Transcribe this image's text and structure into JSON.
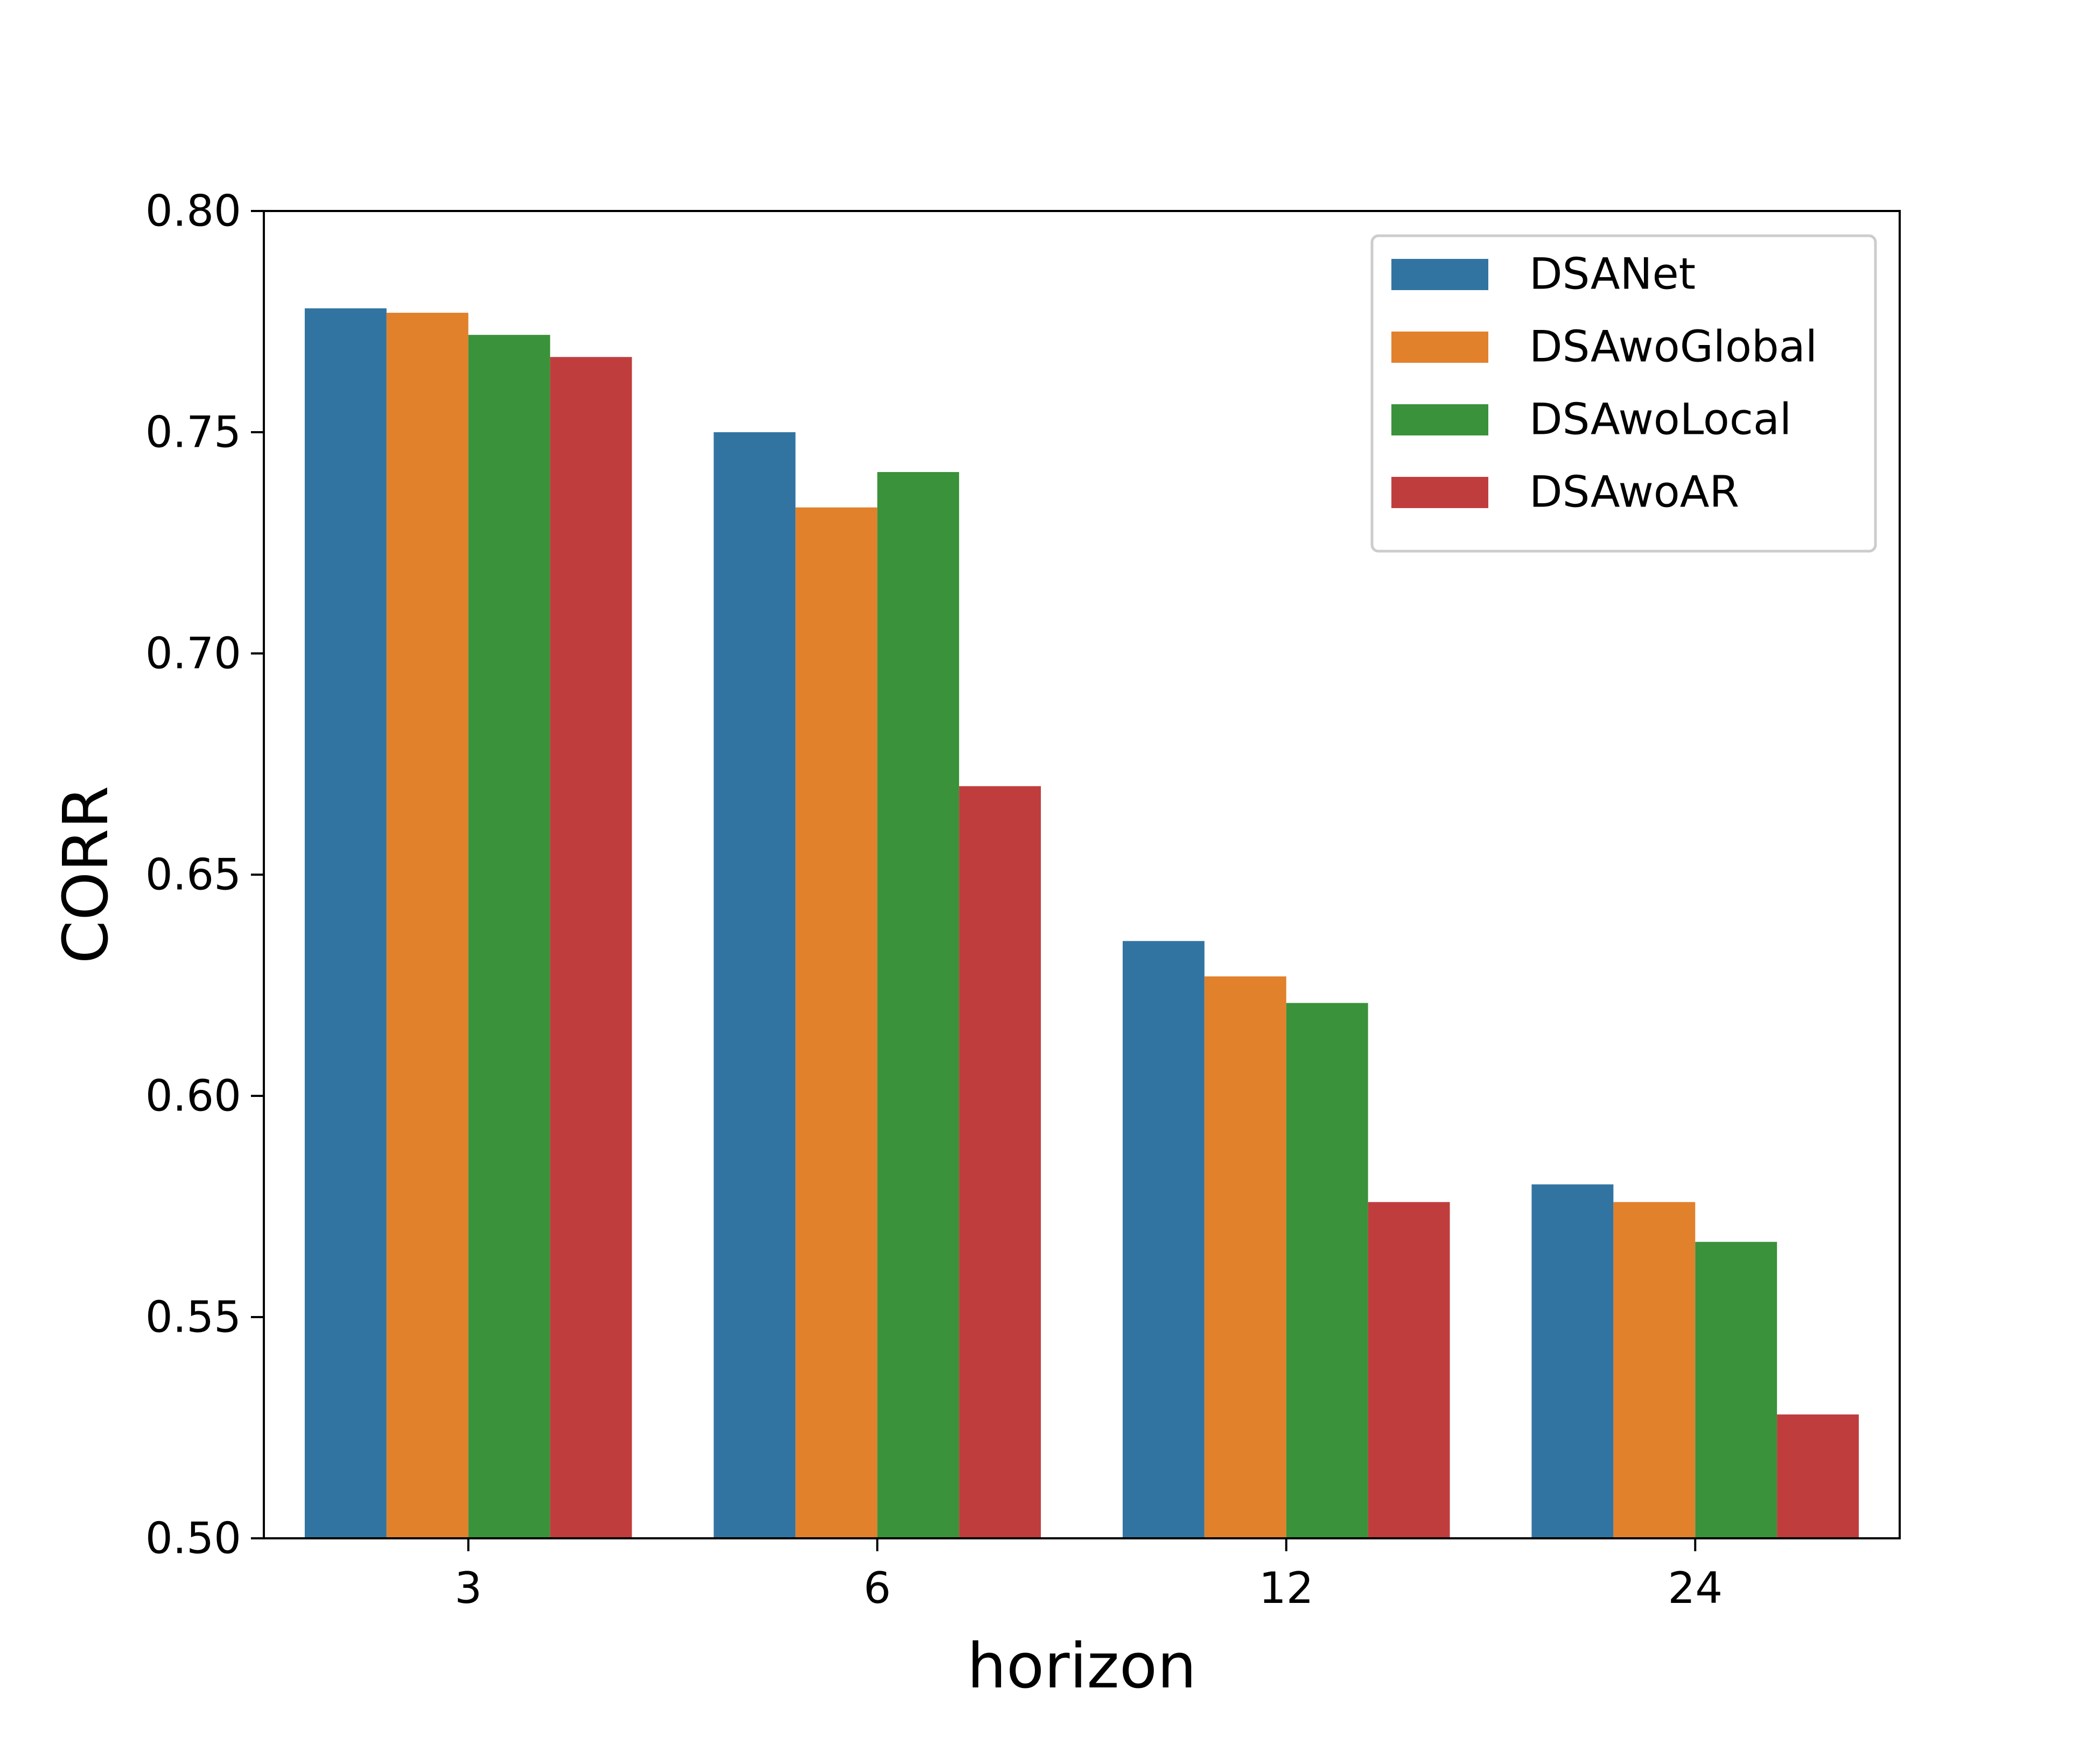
{
  "chart_data": {
    "type": "bar",
    "title": "",
    "xlabel": "horizon",
    "ylabel": "CORR",
    "categories": [
      "3",
      "6",
      "12",
      "24"
    ],
    "ylim": [
      0.5,
      0.8
    ],
    "yticks": [
      "0.50",
      "0.55",
      "0.60",
      "0.65",
      "0.70",
      "0.75",
      "0.80"
    ],
    "legend_position": "top-right",
    "grid": false,
    "series": [
      {
        "name": "DSANet",
        "color": "#3274a1",
        "values": [
          0.778,
          0.75,
          0.635,
          0.58
        ]
      },
      {
        "name": "DSAwoGlobal",
        "color": "#e1812c",
        "values": [
          0.777,
          0.733,
          0.627,
          0.576
        ]
      },
      {
        "name": "DSAwoLocal",
        "color": "#3a923a",
        "values": [
          0.772,
          0.741,
          0.621,
          0.567
        ]
      },
      {
        "name": "DSAwoAR",
        "color": "#c03d3e",
        "values": [
          0.767,
          0.67,
          0.576,
          0.528
        ]
      }
    ]
  }
}
